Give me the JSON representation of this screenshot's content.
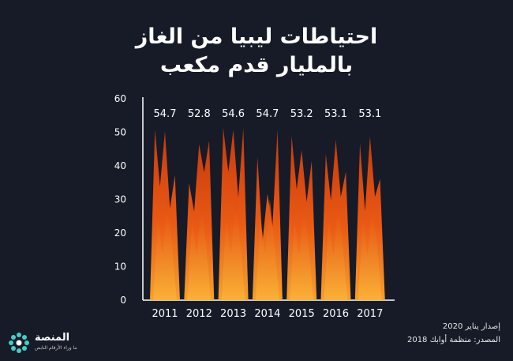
{
  "title_line1": "احتياطات ليبيا من الغاز",
  "title_line2": "بالمليار قدم مكعب",
  "footer": {
    "release": "إصدار يناير 2020",
    "source": "المصدر: منظمة أوابك 2018"
  },
  "logo": {
    "name": "المنصة",
    "tagline": "ما وراء الأرقام النابض"
  },
  "colors": {
    "background": "#161b27",
    "flame_base": "#e64a0f",
    "flame_light": "#f7a02b",
    "flame_dark": "#c0330a"
  },
  "chart_data": {
    "type": "bar",
    "categories": [
      "2011",
      "2012",
      "2013",
      "2014",
      "2015",
      "2016",
      "2017"
    ],
    "values": [
      54.7,
      52.8,
      54.6,
      54.7,
      53.2,
      53.1,
      53.1
    ],
    "data_labels": [
      "54.7",
      "52.8",
      "54.6",
      "54.7",
      "53.2",
      "53.1",
      "53.1"
    ],
    "yticks": [
      "0",
      "10",
      "20",
      "30",
      "40",
      "50",
      "60"
    ],
    "ylim": [
      0,
      60
    ],
    "title": "احتياطات ليبيا من الغاز بالمليار قدم مكعب"
  }
}
